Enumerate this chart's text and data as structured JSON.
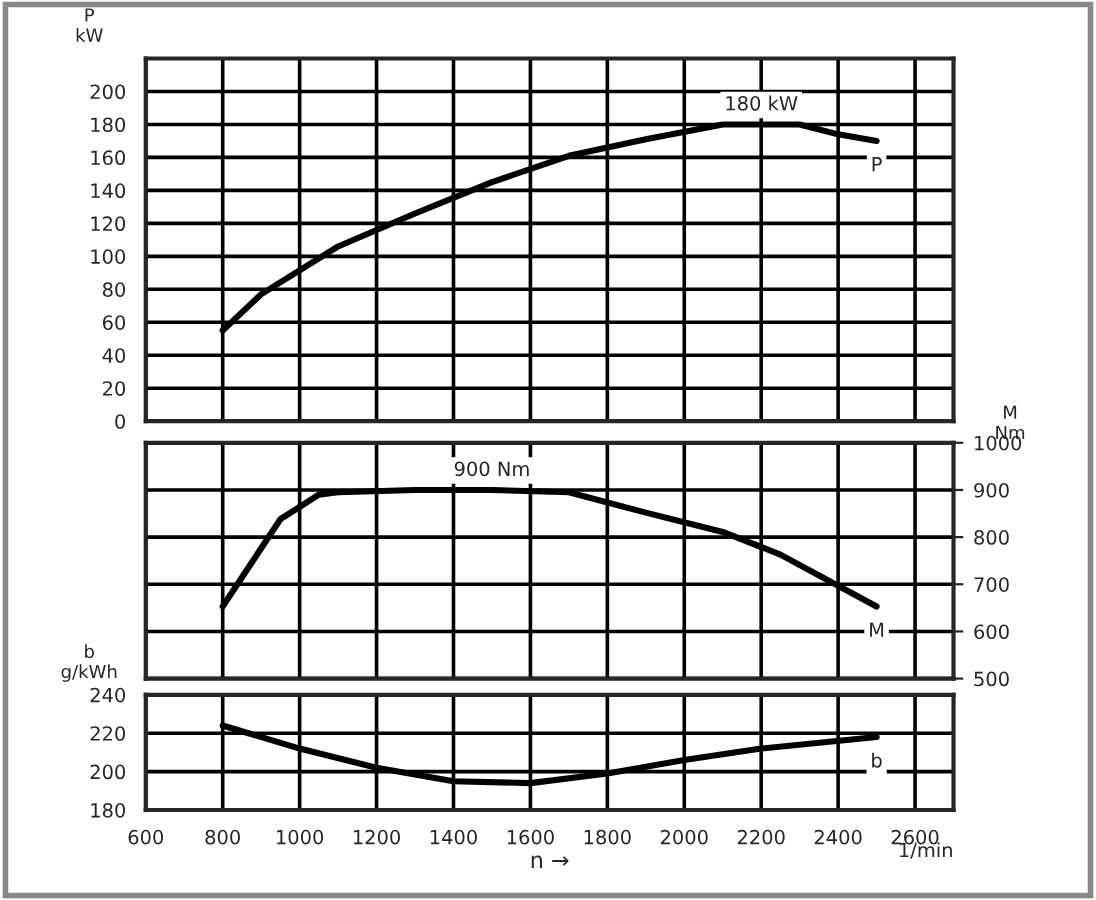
{
  "chart_data": [
    {
      "type": "line",
      "x": [
        800,
        900,
        1100,
        1300,
        1500,
        1700,
        1900,
        2100,
        2300,
        2400,
        2500
      ],
      "series": [
        {
          "color": "#000000",
          "values": [
            55,
            77,
            106,
            126,
            145,
            161,
            171,
            180,
            180,
            174,
            170
          ]
        }
      ],
      "xlim": [
        600,
        2700
      ],
      "xticks": [
        600,
        800,
        1000,
        1200,
        1400,
        1600,
        1800,
        2000,
        2200,
        2400,
        2600
      ],
      "ylim": [
        0,
        220
      ],
      "yticks": [
        0,
        20,
        40,
        60,
        80,
        100,
        120,
        140,
        160,
        180,
        200
      ],
      "ylabel": "P\nkW",
      "tick_labels": "y",
      "grid": true,
      "annotations": [
        {
          "text": "180 kW",
          "x": 2200,
          "y": 180
        },
        {
          "text": "P",
          "x": 2500,
          "y": 170
        }
      ]
    },
    {
      "type": "line",
      "x": [
        800,
        950,
        1050,
        1100,
        1300,
        1500,
        1700,
        1900,
        2100,
        2250,
        2500
      ],
      "series": [
        {
          "color": "#000000",
          "values": [
            653,
            838,
            890,
            895,
            900,
            900,
            895,
            852,
            811,
            763,
            653
          ]
        }
      ],
      "xlim": [
        600,
        2700
      ],
      "xticks": [
        600,
        800,
        1000,
        1200,
        1400,
        1600,
        1800,
        2000,
        2200,
        2400,
        2600
      ],
      "ylim": [
        500,
        1000
      ],
      "yticks": [
        500,
        600,
        700,
        800,
        900,
        1000
      ],
      "y2label": "M\nNm",
      "tick_labels": "y",
      "grid": true,
      "annotations": [
        {
          "text": "900 Nm",
          "x": 1500,
          "y": 900
        },
        {
          "text": "M",
          "x": 2500,
          "y": 653
        }
      ]
    },
    {
      "type": "line",
      "x": [
        800,
        1000,
        1200,
        1400,
        1600,
        1800,
        2000,
        2200,
        2500
      ],
      "series": [
        {
          "color": "#000000",
          "values": [
            224,
            212,
            202,
            195,
            194,
            199,
            206,
            212,
            218
          ]
        }
      ],
      "xlim": [
        600,
        2700
      ],
      "xticks": [
        600,
        800,
        1000,
        1200,
        1400,
        1600,
        1800,
        2000,
        2200,
        2400,
        2600
      ],
      "ylim": [
        180,
        240
      ],
      "yticks": [
        180,
        200,
        220,
        240
      ],
      "ylabel": "b\ng/kWh",
      "xlabel": "n →",
      "grid": true,
      "annotations": [
        {
          "text": "b",
          "x": 2500,
          "y": 218
        },
        "1/min"
      ]
    }
  ]
}
